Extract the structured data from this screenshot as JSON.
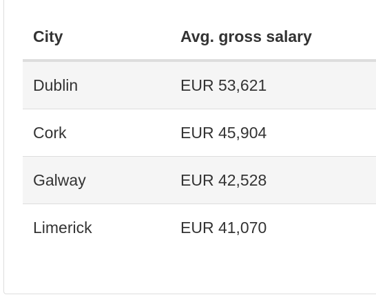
{
  "table": {
    "header": [
      "City",
      "Avg. gross salary"
    ],
    "rows": [
      [
        "Dublin",
        "EUR 53,621"
      ],
      [
        "Cork",
        "EUR 45,904"
      ],
      [
        "Galway",
        "EUR 42,528"
      ],
      [
        "Limerick",
        "EUR 41,070"
      ]
    ]
  }
}
